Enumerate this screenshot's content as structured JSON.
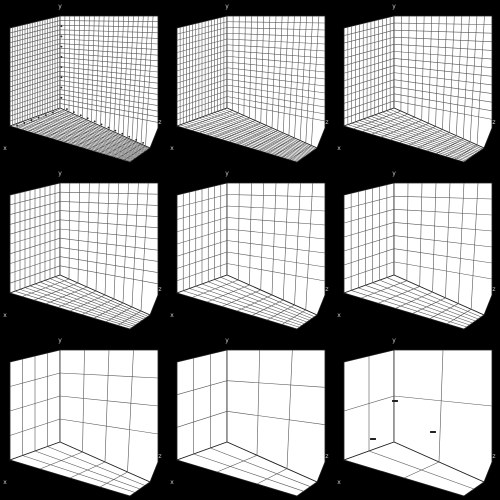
{
  "page": {
    "background": "#000000"
  },
  "style": {
    "panel_fill": "#ffffff",
    "grid_stroke": "#555555",
    "edge_stroke": "#222222",
    "axis_label_color": "#cccccc",
    "tick_color": "#222222"
  },
  "axis_labels": {
    "x": "x",
    "y": "y",
    "z": "z"
  },
  "panels": [
    {
      "id": "grid-20",
      "divisions": 20,
      "ticks": "dense"
    },
    {
      "id": "grid-16",
      "divisions": 16,
      "ticks": "none"
    },
    {
      "id": "grid-13",
      "divisions": 13,
      "ticks": "none"
    },
    {
      "id": "grid-10",
      "divisions": 10,
      "ticks": "none"
    },
    {
      "id": "grid-8",
      "divisions": 8,
      "ticks": "none"
    },
    {
      "id": "grid-7",
      "divisions": 7,
      "ticks": "none"
    },
    {
      "id": "grid-4",
      "divisions": 4,
      "ticks": "none"
    },
    {
      "id": "grid-3",
      "divisions": 3,
      "ticks": "none"
    },
    {
      "id": "grid-2",
      "divisions": 2,
      "ticks": "sparse"
    }
  ]
}
